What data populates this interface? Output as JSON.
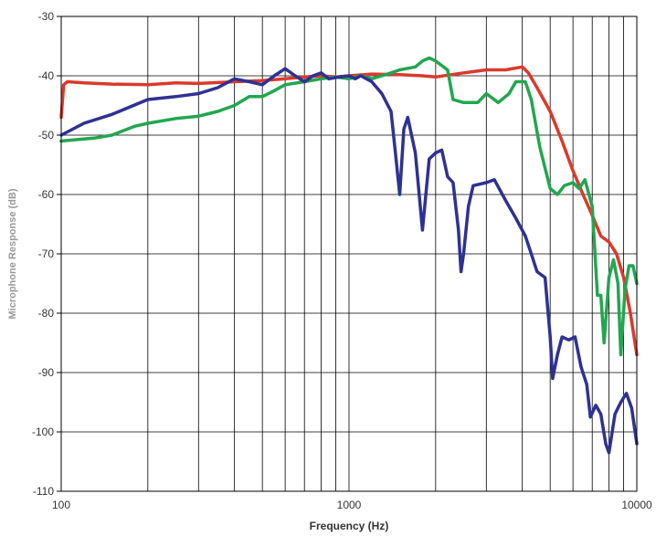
{
  "chart_data": {
    "type": "line",
    "title": "",
    "xlabel": "Frequency (Hz)",
    "ylabel": "Microphone Response (dB)",
    "x_scale": "log",
    "xlim": [
      100,
      10000
    ],
    "ylim": [
      -110,
      -30
    ],
    "x_ticks": [
      100,
      1000,
      10000
    ],
    "x_tick_labels": [
      "100",
      "1000",
      "10000"
    ],
    "y_ticks": [
      -30,
      -40,
      -50,
      -60,
      -70,
      -80,
      -90,
      -100,
      -110
    ],
    "y_tick_labels": [
      "-30",
      "-40",
      "-50",
      "-60",
      "-70",
      "-80",
      "-90",
      "-100",
      "-110"
    ],
    "grid": true,
    "legend": "none",
    "series": [
      {
        "color": "#d93a2b",
        "points": [
          [
            100,
            -47
          ],
          [
            102,
            -41.5
          ],
          [
            105,
            -41
          ],
          [
            120,
            -41.2
          ],
          [
            150,
            -41.4
          ],
          [
            200,
            -41.5
          ],
          [
            250,
            -41.2
          ],
          [
            300,
            -41.3
          ],
          [
            400,
            -41
          ],
          [
            500,
            -40.8
          ],
          [
            600,
            -40.5
          ],
          [
            700,
            -40.2
          ],
          [
            800,
            -40
          ],
          [
            900,
            -40.2
          ],
          [
            1000,
            -40
          ],
          [
            1200,
            -39.7
          ],
          [
            1500,
            -39.8
          ],
          [
            1800,
            -40
          ],
          [
            2000,
            -40.2
          ],
          [
            2500,
            -39.5
          ],
          [
            3000,
            -39
          ],
          [
            3500,
            -39
          ],
          [
            4000,
            -38.5
          ],
          [
            4200,
            -39.5
          ],
          [
            4500,
            -42
          ],
          [
            5000,
            -46
          ],
          [
            5500,
            -51
          ],
          [
            6000,
            -56
          ],
          [
            6500,
            -60
          ],
          [
            7000,
            -63.5
          ],
          [
            7500,
            -67
          ],
          [
            8000,
            -68
          ],
          [
            8500,
            -70
          ],
          [
            9000,
            -74
          ],
          [
            9500,
            -80
          ],
          [
            10000,
            -87
          ]
        ]
      },
      {
        "color": "#22a650",
        "points": [
          [
            100,
            -51
          ],
          [
            110,
            -50.8
          ],
          [
            130,
            -50.5
          ],
          [
            150,
            -50
          ],
          [
            180,
            -48.5
          ],
          [
            200,
            -48
          ],
          [
            250,
            -47.2
          ],
          [
            300,
            -46.8
          ],
          [
            350,
            -46
          ],
          [
            400,
            -45
          ],
          [
            450,
            -43.5
          ],
          [
            500,
            -43.5
          ],
          [
            550,
            -42.5
          ],
          [
            600,
            -41.5
          ],
          [
            700,
            -41
          ],
          [
            800,
            -40.5
          ],
          [
            900,
            -40.2
          ],
          [
            1000,
            -40.5
          ],
          [
            1100,
            -40
          ],
          [
            1200,
            -40.5
          ],
          [
            1300,
            -40
          ],
          [
            1400,
            -39.5
          ],
          [
            1500,
            -39
          ],
          [
            1700,
            -38.5
          ],
          [
            1800,
            -37.5
          ],
          [
            1900,
            -37
          ],
          [
            2000,
            -37.5
          ],
          [
            2200,
            -39
          ],
          [
            2300,
            -44
          ],
          [
            2500,
            -44.5
          ],
          [
            2800,
            -44.5
          ],
          [
            3000,
            -43
          ],
          [
            3300,
            -44.5
          ],
          [
            3600,
            -43
          ],
          [
            3800,
            -41
          ],
          [
            4100,
            -41
          ],
          [
            4300,
            -44
          ],
          [
            4600,
            -52
          ],
          [
            5000,
            -59
          ],
          [
            5300,
            -60
          ],
          [
            5600,
            -58.5
          ],
          [
            6000,
            -58
          ],
          [
            6300,
            -59
          ],
          [
            6600,
            -57.5
          ],
          [
            7000,
            -62
          ],
          [
            7300,
            -77
          ],
          [
            7500,
            -77
          ],
          [
            7700,
            -85
          ],
          [
            8000,
            -74
          ],
          [
            8300,
            -71
          ],
          [
            8600,
            -75
          ],
          [
            8800,
            -87
          ],
          [
            9100,
            -76
          ],
          [
            9400,
            -72
          ],
          [
            9700,
            -72
          ],
          [
            10000,
            -75
          ]
        ]
      },
      {
        "color": "#2e3192",
        "points": [
          [
            100,
            -50
          ],
          [
            120,
            -48
          ],
          [
            150,
            -46.5
          ],
          [
            200,
            -44
          ],
          [
            250,
            -43.5
          ],
          [
            300,
            -43
          ],
          [
            350,
            -42
          ],
          [
            400,
            -40.5
          ],
          [
            450,
            -41
          ],
          [
            500,
            -41.5
          ],
          [
            550,
            -40
          ],
          [
            600,
            -38.8
          ],
          [
            650,
            -40
          ],
          [
            700,
            -41
          ],
          [
            750,
            -40
          ],
          [
            800,
            -39.5
          ],
          [
            850,
            -40.5
          ],
          [
            900,
            -40.3
          ],
          [
            1000,
            -40
          ],
          [
            1050,
            -40.5
          ],
          [
            1100,
            -40
          ],
          [
            1150,
            -40.5
          ],
          [
            1200,
            -41
          ],
          [
            1300,
            -43
          ],
          [
            1400,
            -46
          ],
          [
            1450,
            -53
          ],
          [
            1500,
            -60
          ],
          [
            1550,
            -49
          ],
          [
            1600,
            -47
          ],
          [
            1700,
            -53
          ],
          [
            1800,
            -66
          ],
          [
            1900,
            -54
          ],
          [
            2000,
            -53
          ],
          [
            2100,
            -52.5
          ],
          [
            2200,
            -57
          ],
          [
            2300,
            -58
          ],
          [
            2400,
            -66
          ],
          [
            2450,
            -73
          ],
          [
            2500,
            -70
          ],
          [
            2600,
            -62
          ],
          [
            2700,
            -58.5
          ],
          [
            3000,
            -58
          ],
          [
            3200,
            -57.5
          ],
          [
            3500,
            -61
          ],
          [
            3800,
            -64
          ],
          [
            4100,
            -67
          ],
          [
            4300,
            -70
          ],
          [
            4500,
            -73
          ],
          [
            4800,
            -74
          ],
          [
            5000,
            -84
          ],
          [
            5100,
            -91
          ],
          [
            5300,
            -87
          ],
          [
            5500,
            -84
          ],
          [
            5800,
            -84.5
          ],
          [
            6100,
            -84
          ],
          [
            6400,
            -89
          ],
          [
            6700,
            -92
          ],
          [
            6900,
            -97.5
          ],
          [
            7200,
            -95.5
          ],
          [
            7500,
            -97
          ],
          [
            7800,
            -102
          ],
          [
            8000,
            -103.5
          ],
          [
            8400,
            -97
          ],
          [
            8800,
            -95
          ],
          [
            9200,
            -93.5
          ],
          [
            9600,
            -96
          ],
          [
            10000,
            -102
          ]
        ]
      }
    ]
  }
}
